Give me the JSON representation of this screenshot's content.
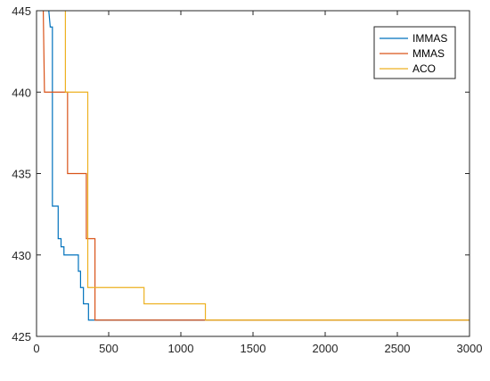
{
  "chart_data": {
    "type": "line",
    "title": "",
    "xlabel": "",
    "ylabel": "",
    "xlim": [
      0,
      3000
    ],
    "ylim": [
      425,
      445
    ],
    "x_ticks": [
      0,
      500,
      1000,
      1500,
      2000,
      2500,
      3000
    ],
    "x_tick_labels": [
      "0",
      "500",
      "1000",
      "1500",
      "2000",
      "2500",
      "3000"
    ],
    "y_ticks": [
      425,
      430,
      435,
      440,
      445
    ],
    "y_tick_labels": [
      "425",
      "430",
      "435",
      "440",
      "445"
    ],
    "grid": false,
    "legend_position": "top-right",
    "series": [
      {
        "name": "IMMAS",
        "color": "#0072BD",
        "points": [
          [
            70,
            446
          ],
          [
            85,
            445
          ],
          [
            95,
            444
          ],
          [
            110,
            444
          ],
          [
            110,
            433
          ],
          [
            150,
            433
          ],
          [
            150,
            431
          ],
          [
            170,
            431
          ],
          [
            170,
            430.5
          ],
          [
            190,
            430.5
          ],
          [
            190,
            430
          ],
          [
            290,
            430
          ],
          [
            290,
            429
          ],
          [
            305,
            429
          ],
          [
            305,
            428
          ],
          [
            325,
            428
          ],
          [
            325,
            427
          ],
          [
            360,
            427
          ],
          [
            360,
            426
          ],
          [
            3000,
            426
          ]
        ]
      },
      {
        "name": "MMAS",
        "color": "#D95319",
        "points": [
          [
            45,
            446
          ],
          [
            55,
            440
          ],
          [
            215,
            440
          ],
          [
            215,
            435
          ],
          [
            345,
            435
          ],
          [
            345,
            431
          ],
          [
            405,
            431
          ],
          [
            405,
            426
          ],
          [
            3000,
            426
          ]
        ]
      },
      {
        "name": "ACO",
        "color": "#EDB120",
        "points": [
          [
            200,
            446
          ],
          [
            200,
            440
          ],
          [
            355,
            440
          ],
          [
            355,
            428
          ],
          [
            745,
            428
          ],
          [
            745,
            427
          ],
          [
            1170,
            427
          ],
          [
            1170,
            426
          ],
          [
            3000,
            426
          ]
        ]
      }
    ]
  }
}
